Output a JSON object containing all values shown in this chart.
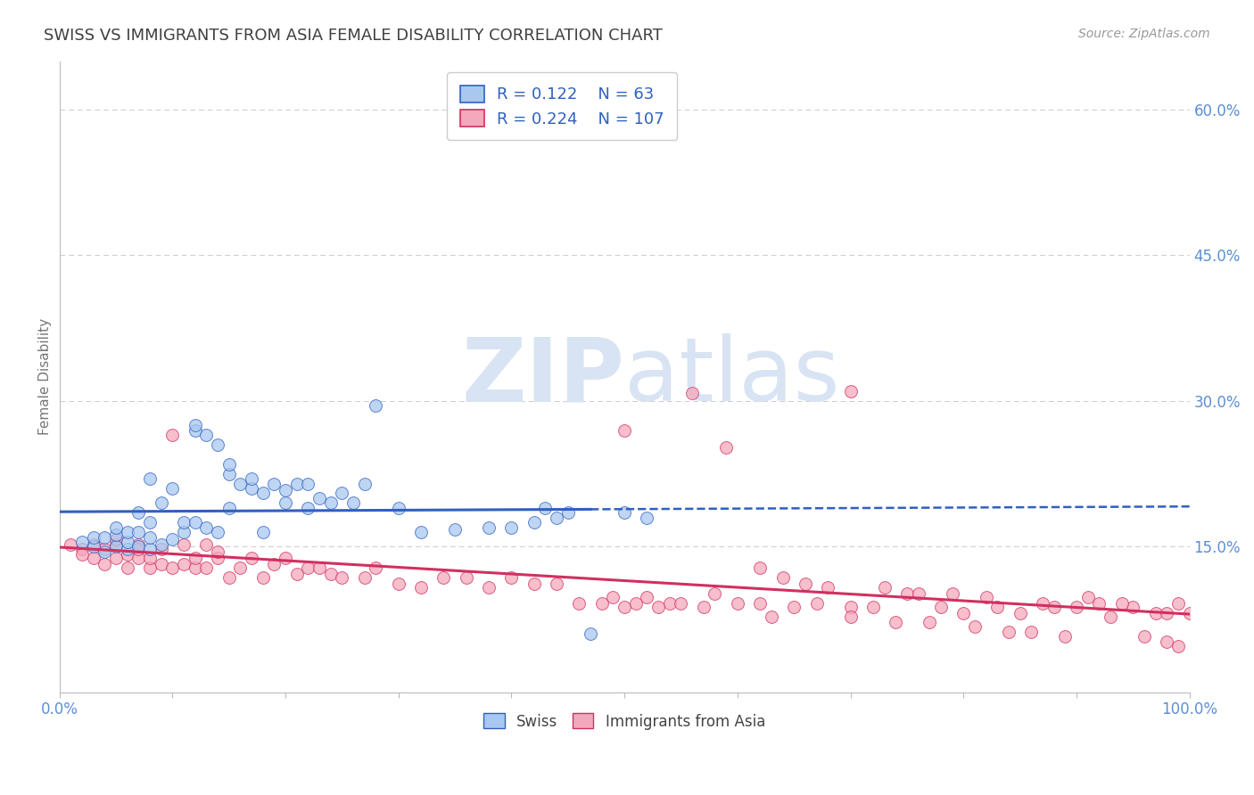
{
  "title": "SWISS VS IMMIGRANTS FROM ASIA FEMALE DISABILITY CORRELATION CHART",
  "source_text": "Source: ZipAtlas.com",
  "ylabel": "Female Disability",
  "xlim": [
    0,
    1.0
  ],
  "ylim": [
    0,
    0.65
  ],
  "yticks": [
    0.15,
    0.3,
    0.45,
    0.6
  ],
  "ytick_labels": [
    "15.0%",
    "30.0%",
    "45.0%",
    "60.0%"
  ],
  "xticks": [
    0.0,
    0.1,
    0.2,
    0.3,
    0.4,
    0.5,
    0.6,
    0.7,
    0.8,
    0.9,
    1.0
  ],
  "swiss_R": 0.122,
  "swiss_N": 63,
  "asia_R": 0.224,
  "asia_N": 107,
  "swiss_color": "#A8C8F0",
  "asia_color": "#F5A8BC",
  "trend_swiss_color": "#3060C0",
  "trend_asia_color": "#D03060",
  "background_color": "#FFFFFF",
  "grid_color": "#CCCCCC",
  "title_color": "#404040",
  "axis_label_color": "#777777",
  "tick_label_color": "#5B8FD4",
  "watermark_color": "#D8E4F4",
  "swiss_x": [
    0.02,
    0.03,
    0.03,
    0.04,
    0.04,
    0.05,
    0.05,
    0.05,
    0.06,
    0.06,
    0.06,
    0.07,
    0.07,
    0.07,
    0.08,
    0.08,
    0.08,
    0.08,
    0.09,
    0.09,
    0.1,
    0.1,
    0.11,
    0.11,
    0.12,
    0.12,
    0.12,
    0.13,
    0.13,
    0.14,
    0.14,
    0.15,
    0.15,
    0.15,
    0.16,
    0.17,
    0.17,
    0.18,
    0.18,
    0.19,
    0.2,
    0.2,
    0.21,
    0.22,
    0.22,
    0.23,
    0.24,
    0.25,
    0.26,
    0.27,
    0.28,
    0.3,
    0.32,
    0.35,
    0.38,
    0.4,
    0.42,
    0.43,
    0.44,
    0.45,
    0.47,
    0.5,
    0.52
  ],
  "swiss_y": [
    0.155,
    0.15,
    0.16,
    0.145,
    0.16,
    0.15,
    0.162,
    0.17,
    0.148,
    0.155,
    0.165,
    0.15,
    0.165,
    0.185,
    0.148,
    0.16,
    0.175,
    0.22,
    0.152,
    0.195,
    0.158,
    0.21,
    0.165,
    0.175,
    0.175,
    0.27,
    0.275,
    0.17,
    0.265,
    0.165,
    0.255,
    0.19,
    0.225,
    0.235,
    0.215,
    0.21,
    0.22,
    0.165,
    0.205,
    0.215,
    0.195,
    0.208,
    0.215,
    0.19,
    0.215,
    0.2,
    0.195,
    0.205,
    0.195,
    0.215,
    0.295,
    0.19,
    0.165,
    0.168,
    0.17,
    0.17,
    0.175,
    0.19,
    0.18,
    0.185,
    0.06,
    0.185,
    0.18
  ],
  "asia_x": [
    0.01,
    0.02,
    0.02,
    0.03,
    0.03,
    0.04,
    0.04,
    0.05,
    0.05,
    0.05,
    0.06,
    0.06,
    0.07,
    0.07,
    0.07,
    0.08,
    0.08,
    0.09,
    0.09,
    0.1,
    0.1,
    0.11,
    0.11,
    0.12,
    0.12,
    0.13,
    0.13,
    0.14,
    0.14,
    0.15,
    0.16,
    0.17,
    0.18,
    0.19,
    0.2,
    0.21,
    0.22,
    0.23,
    0.24,
    0.25,
    0.27,
    0.28,
    0.3,
    0.32,
    0.34,
    0.36,
    0.38,
    0.4,
    0.42,
    0.44,
    0.46,
    0.48,
    0.5,
    0.5,
    0.52,
    0.54,
    0.55,
    0.57,
    0.58,
    0.6,
    0.62,
    0.65,
    0.67,
    0.7,
    0.72,
    0.75,
    0.78,
    0.8,
    0.83,
    0.85,
    0.87,
    0.9,
    0.92,
    0.93,
    0.95,
    0.97,
    0.98,
    0.99,
    1.0,
    0.56,
    0.59,
    0.62,
    0.64,
    0.66,
    0.68,
    0.73,
    0.76,
    0.79,
    0.82,
    0.88,
    0.91,
    0.94,
    0.49,
    0.51,
    0.53,
    0.63,
    0.7,
    0.74,
    0.77,
    0.81,
    0.84,
    0.86,
    0.89,
    0.96,
    0.98,
    0.99,
    0.7
  ],
  "asia_y": [
    0.152,
    0.148,
    0.142,
    0.138,
    0.152,
    0.132,
    0.148,
    0.138,
    0.152,
    0.158,
    0.128,
    0.142,
    0.138,
    0.152,
    0.148,
    0.128,
    0.138,
    0.132,
    0.148,
    0.128,
    0.265,
    0.132,
    0.152,
    0.128,
    0.138,
    0.128,
    0.152,
    0.138,
    0.145,
    0.118,
    0.128,
    0.138,
    0.118,
    0.132,
    0.138,
    0.122,
    0.128,
    0.128,
    0.122,
    0.118,
    0.118,
    0.128,
    0.112,
    0.108,
    0.118,
    0.118,
    0.108,
    0.118,
    0.112,
    0.112,
    0.092,
    0.092,
    0.088,
    0.27,
    0.098,
    0.092,
    0.092,
    0.088,
    0.102,
    0.092,
    0.092,
    0.088,
    0.092,
    0.088,
    0.088,
    0.102,
    0.088,
    0.082,
    0.088,
    0.082,
    0.092,
    0.088,
    0.092,
    0.078,
    0.088,
    0.082,
    0.082,
    0.092,
    0.082,
    0.308,
    0.252,
    0.128,
    0.118,
    0.112,
    0.108,
    0.108,
    0.102,
    0.102,
    0.098,
    0.088,
    0.098,
    0.092,
    0.098,
    0.092,
    0.088,
    0.078,
    0.078,
    0.072,
    0.072,
    0.068,
    0.062,
    0.062,
    0.058,
    0.058,
    0.052,
    0.048,
    0.31
  ]
}
